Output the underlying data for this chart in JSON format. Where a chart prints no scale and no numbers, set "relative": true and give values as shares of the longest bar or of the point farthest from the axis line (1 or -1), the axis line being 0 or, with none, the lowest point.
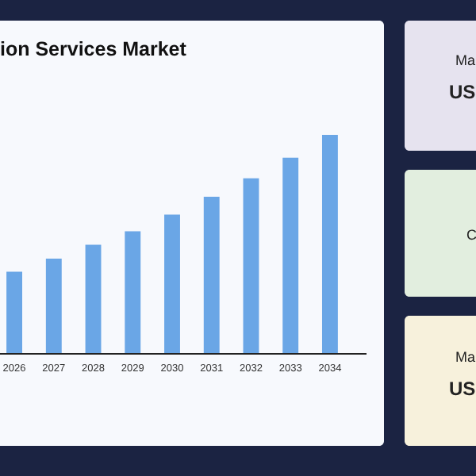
{
  "chart_data": {
    "type": "bar",
    "title": "ion Services Market",
    "categories": [
      "2026",
      "2027",
      "2028",
      "2029",
      "2030",
      "2031",
      "2032",
      "2033",
      "2034"
    ],
    "values": [
      0.375,
      0.435,
      0.498,
      0.56,
      0.636,
      0.717,
      0.802,
      0.896,
      1
    ],
    "color": "#6aa6e6",
    "relative": true,
    "annotations": [
      "Ma",
      "US",
      "C",
      "Ma",
      "US"
    ]
  }
}
